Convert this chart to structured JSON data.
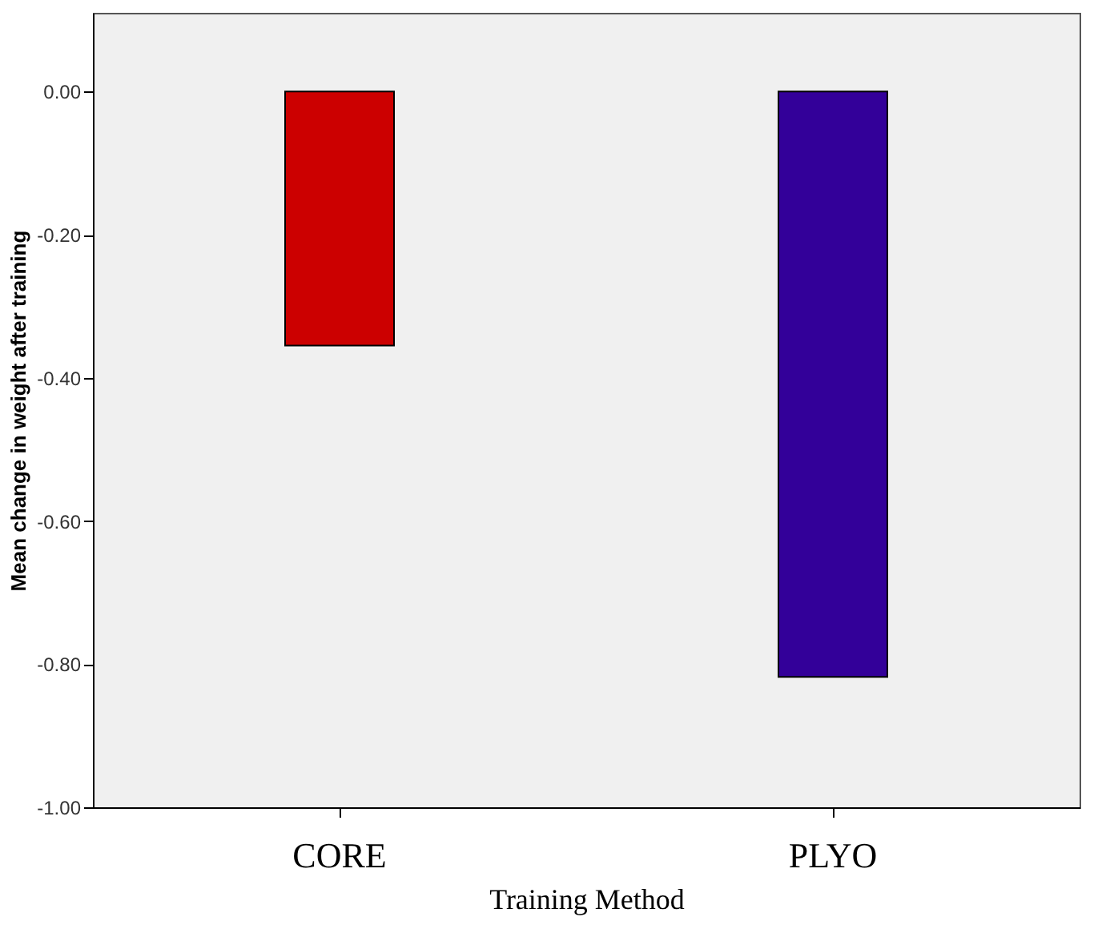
{
  "chart_data": {
    "type": "bar",
    "xlabel": "Training Method",
    "ylabel": "Mean change in weight after training",
    "categories": [
      "CORE",
      "PLYO"
    ],
    "values": [
      -0.355,
      -0.818
    ],
    "colors": [
      "#cc0000",
      "#330099"
    ],
    "ylim": [
      -1.0,
      0.11
    ],
    "yticks": [
      {
        "value": 0,
        "label": "0.00"
      },
      {
        "value": -0.2,
        "label": "-0.20"
      },
      {
        "value": -0.4,
        "label": "-0.40"
      },
      {
        "value": -0.6,
        "label": "-0.60"
      },
      {
        "value": -0.8,
        "label": "-0.80"
      },
      {
        "value": -1.0,
        "label": "-1.00"
      }
    ],
    "grid": false
  }
}
